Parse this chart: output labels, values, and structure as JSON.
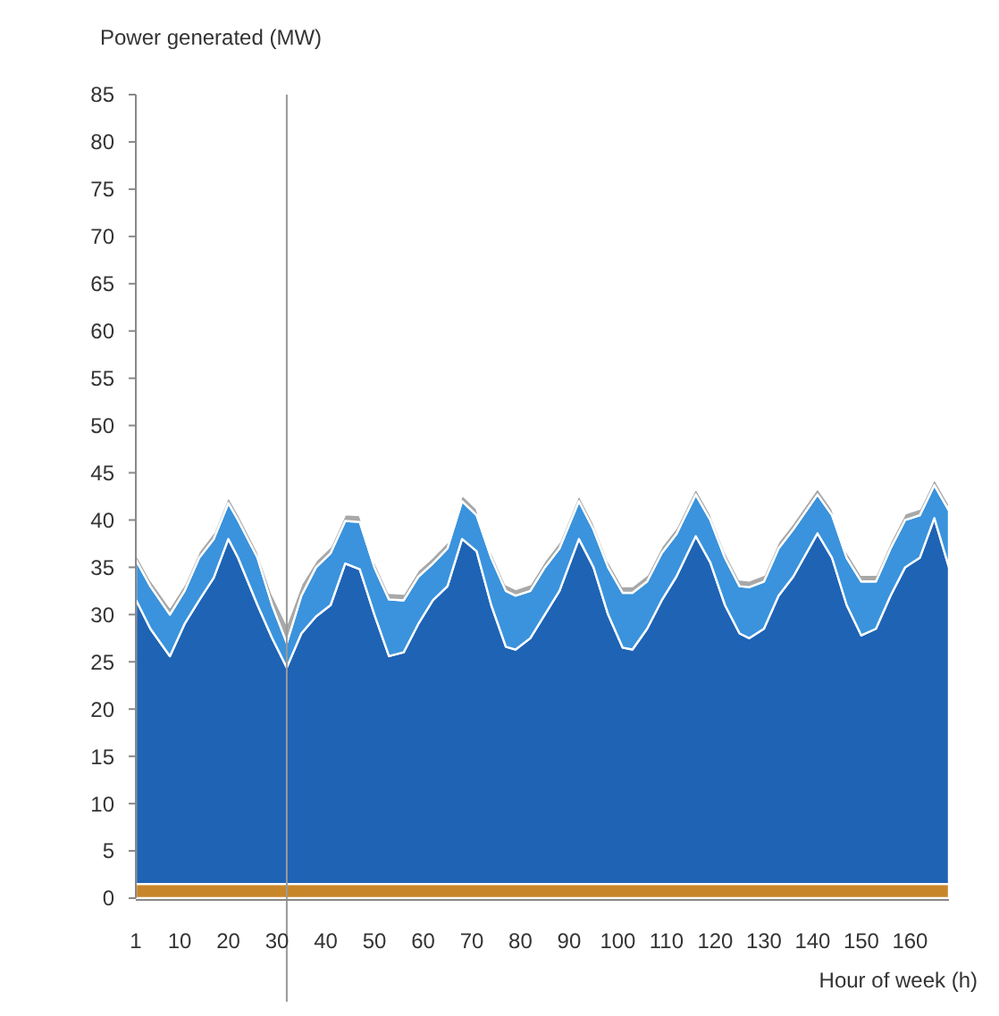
{
  "chart_data": {
    "type": "area",
    "stacked": true,
    "ylabel": "Power generated (MW)",
    "xlabel": "Hour of week (h)",
    "x": [
      1,
      4,
      8,
      11,
      14,
      17,
      20,
      22,
      26,
      29,
      32,
      35,
      38,
      41,
      44,
      47,
      50,
      53,
      56,
      59,
      62,
      65,
      68,
      71,
      74,
      77,
      79,
      82,
      85,
      88,
      92,
      95,
      98,
      101,
      103,
      106,
      109,
      112,
      116,
      119,
      122,
      125,
      127,
      130,
      133,
      136,
      141,
      144,
      147,
      150,
      153,
      156,
      159,
      162,
      165,
      168
    ],
    "xlim": [
      1,
      168
    ],
    "xticks": [
      1,
      10,
      20,
      30,
      40,
      50,
      60,
      70,
      80,
      90,
      100,
      110,
      120,
      130,
      140,
      150,
      160
    ],
    "ylim": [
      0,
      85
    ],
    "yticks": [
      0,
      5,
      10,
      15,
      20,
      25,
      30,
      35,
      40,
      45,
      50,
      55,
      60,
      65,
      70,
      75,
      80,
      85
    ],
    "grid": false,
    "series": [
      {
        "color": "#c8862a",
        "values": [
          1.5,
          1.5,
          1.5,
          1.5,
          1.5,
          1.5,
          1.5,
          1.5,
          1.5,
          1.5,
          1.5,
          1.5,
          1.5,
          1.5,
          1.5,
          1.5,
          1.5,
          1.5,
          1.5,
          1.5,
          1.5,
          1.5,
          1.5,
          1.5,
          1.5,
          1.5,
          1.5,
          1.5,
          1.5,
          1.5,
          1.5,
          1.5,
          1.5,
          1.5,
          1.5,
          1.5,
          1.5,
          1.5,
          1.5,
          1.5,
          1.5,
          1.5,
          1.5,
          1.5,
          1.5,
          1.5,
          1.5,
          1.5,
          1.5,
          1.5,
          1.5,
          1.5,
          1.5,
          1.5,
          1.5,
          1.5
        ]
      },
      {
        "color": "#1f63b5",
        "values": [
          30.1,
          27,
          24.1,
          27.5,
          30,
          32.4,
          36.5,
          34.5,
          29.5,
          26,
          22.9,
          26.5,
          28.3,
          29.5,
          33.9,
          33.3,
          28.5,
          24.1,
          24.5,
          27.5,
          30,
          31.5,
          36.5,
          35.2,
          29.5,
          25.1,
          24.8,
          26,
          28.5,
          31,
          36.5,
          33.5,
          28.5,
          25,
          24.8,
          27,
          30,
          32.5,
          36.8,
          34,
          29.5,
          26.5,
          26,
          27,
          30.5,
          32.5,
          37.1,
          34.5,
          29.5,
          26.3,
          27,
          30.5,
          33.5,
          34.5,
          38.7,
          33.5
        ]
      },
      {
        "color": "#3a93dc",
        "values": [
          4.2,
          4.5,
          4.4,
          3.5,
          4.5,
          4.1,
          3.8,
          4,
          5,
          3.5,
          2.6,
          4,
          5.2,
          5.5,
          4.5,
          5,
          5,
          6,
          5.5,
          5,
          3.9,
          4,
          4,
          3.8,
          5,
          5.9,
          5.7,
          5,
          5,
          4.5,
          4,
          4,
          5,
          5.8,
          6,
          5,
          5,
          4.5,
          4.4,
          4.5,
          5,
          5,
          5.4,
          5,
          5,
          5,
          4.1,
          4.5,
          5,
          5.7,
          5,
          5,
          5,
          4.5,
          3.5,
          6
        ]
      },
      {
        "color": "#a8a8a8",
        "values": [
          0.7,
          0.7,
          0.8,
          0.7,
          0.7,
          0.7,
          0.7,
          0.7,
          0.7,
          1.2,
          2,
          1.2,
          0.7,
          0.7,
          0.7,
          0.7,
          0.7,
          0.7,
          0.7,
          0.7,
          0.7,
          0.7,
          0.7,
          0.7,
          0.7,
          0.7,
          0.7,
          0.7,
          0.7,
          0.7,
          0.7,
          0.7,
          0.7,
          0.7,
          0.7,
          0.7,
          0.7,
          0.7,
          0.7,
          0.7,
          0.7,
          0.7,
          0.7,
          0.7,
          0.7,
          0.7,
          0.7,
          0.7,
          0.7,
          0.7,
          0.7,
          0.7,
          0.7,
          0.7,
          0.7,
          0.7
        ]
      }
    ],
    "ref_lines": [
      {
        "axis": "x",
        "value": 32,
        "color": "#9a9a9a"
      }
    ]
  }
}
